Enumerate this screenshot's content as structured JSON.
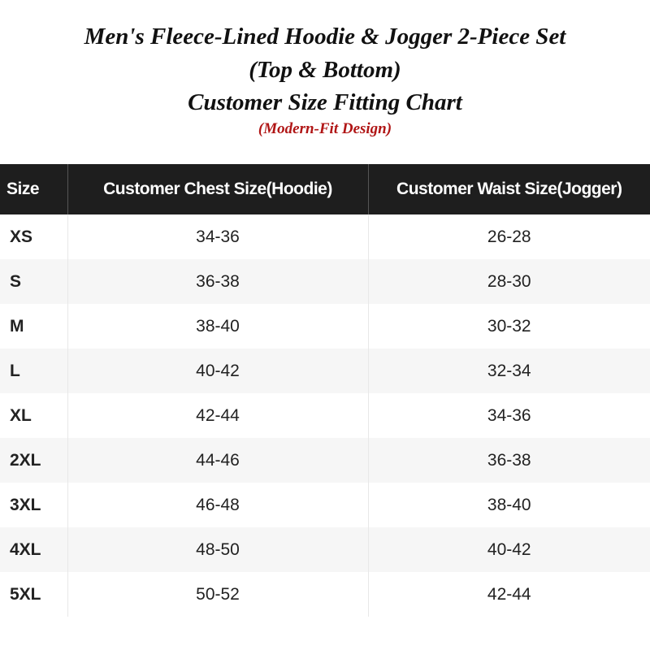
{
  "title": {
    "line1": "Men's Fleece-Lined Hoodie & Jogger 2-Piece Set",
    "line2": "(Top & Bottom)",
    "line3": "Customer Size Fitting Chart",
    "subtitle": "(Modern-Fit Design)",
    "subtitle_color": "#b01515"
  },
  "table": {
    "headers": [
      "Size",
      "Customer Chest Size(Hoodie)",
      "Customer Waist Size(Jogger)"
    ],
    "rows": [
      [
        "XS",
        "34-36",
        "26-28"
      ],
      [
        "S",
        "36-38",
        "28-30"
      ],
      [
        "M",
        "38-40",
        "30-32"
      ],
      [
        "L",
        "40-42",
        "32-34"
      ],
      [
        "XL",
        "42-44",
        "34-36"
      ],
      [
        "2XL",
        "44-46",
        "36-38"
      ],
      [
        "3XL",
        "46-48",
        "38-40"
      ],
      [
        "4XL",
        "48-50",
        "40-42"
      ],
      [
        "5XL",
        "50-52",
        "42-44"
      ]
    ]
  }
}
